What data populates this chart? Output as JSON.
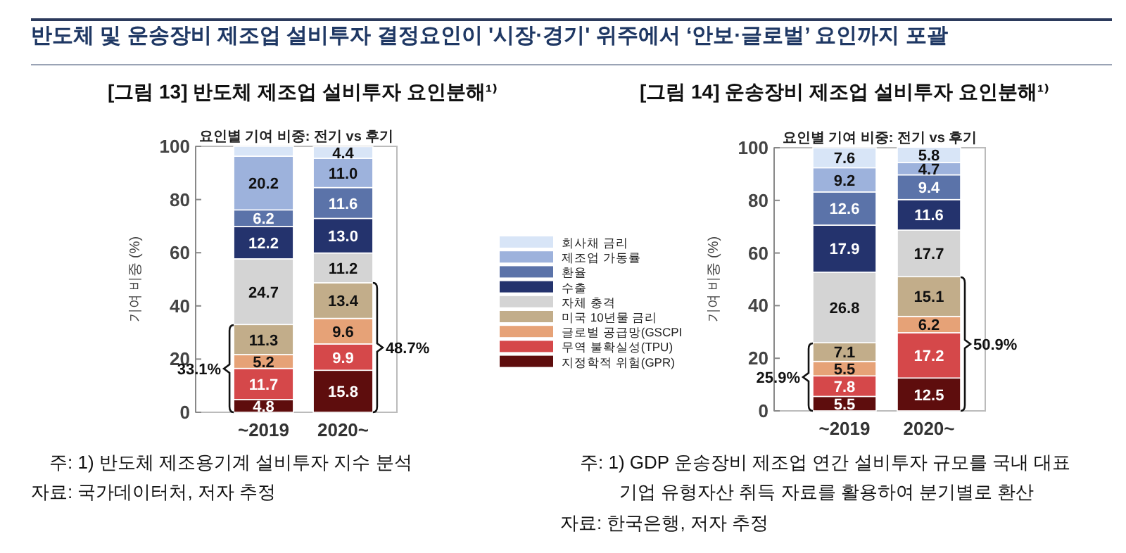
{
  "chart_data": [
    {
      "type": "bar",
      "stacked": true,
      "title": "[그림 13] 반도체 제조업 설비투자 요인분해¹⁾",
      "subtitle": "요인별 기여 비중: 전기 vs 후기",
      "ylabel": "기여 비중 (%)",
      "categories": [
        "~2019",
        "2020~"
      ],
      "ylim": [
        0,
        100
      ],
      "yticks": [
        0,
        20,
        40,
        60,
        80,
        100
      ],
      "legend": "right",
      "series": [
        {
          "name": "지정학적 위험(GPR)",
          "color": "#5e0d0d",
          "values": [
            4.8,
            15.8
          ],
          "value_labels": [
            "4.8",
            "15.8"
          ]
        },
        {
          "name": "무역 불확실성(TPU)",
          "color": "#d5484a",
          "values": [
            11.7,
            9.9
          ],
          "value_labels": [
            "11.7",
            "9.9"
          ]
        },
        {
          "name": "글로벌 공급망(GSCPI",
          "color": "#e6a277",
          "values": [
            5.2,
            9.6
          ],
          "value_labels": [
            "5.2",
            "9.6"
          ]
        },
        {
          "name": "미국 10년물 금리",
          "color": "#c2ad8a",
          "values": [
            11.3,
            13.4
          ],
          "value_labels": [
            "11.3",
            "13.4"
          ]
        },
        {
          "name": "자체 충격",
          "color": "#d4d4d4",
          "values": [
            24.7,
            11.2
          ],
          "value_labels": [
            "24.7",
            "11.2"
          ]
        },
        {
          "name": "수출",
          "color": "#24336d",
          "values": [
            12.2,
            13.0
          ],
          "value_labels": [
            "12.2",
            "13.0"
          ]
        },
        {
          "name": "환율",
          "color": "#5b73a9",
          "values": [
            6.2,
            11.6
          ],
          "value_labels": [
            "6.2",
            "11.6"
          ]
        },
        {
          "name": "제조업 가동률",
          "color": "#9db2dc",
          "values": [
            20.2,
            11.0
          ],
          "value_labels": [
            "20.2",
            "11.0"
          ]
        },
        {
          "name": "회사채 금리",
          "color": "#d8e5f7",
          "values": [
            3.7,
            4.4
          ],
          "value_labels": [
            null,
            "4.4"
          ]
        }
      ],
      "annotations": [
        "반도체 및 운송장비 제조업 설비투자 결정요인이 '시장·경기' 위주에서 ‘안보·글로벌’ 요인까지 포괄",
        "33.1%",
        "48.7%",
        "주: 1) 반도체 제조용기계 설비투자 지수 분석",
        "자료: 국가데이터처, 저자 추정"
      ]
    },
    {
      "type": "bar",
      "stacked": true,
      "title": "[그림 14] 운송장비 제조업 설비투자 요인분해¹⁾",
      "subtitle": "요인별 기여 비중: 전기 vs 후기",
      "ylabel": "기여 비중 (%)",
      "categories": [
        "~2019",
        "2020~"
      ],
      "ylim": [
        0,
        100
      ],
      "yticks": [
        0,
        20,
        40,
        60,
        80,
        100
      ],
      "series": [
        {
          "color": "#5e0d0d",
          "values": [
            5.5,
            12.5
          ],
          "value_labels": [
            "5.5",
            "12.5"
          ]
        },
        {
          "color": "#d5484a",
          "values": [
            7.8,
            17.2
          ],
          "value_labels": [
            "7.8",
            "17.2"
          ]
        },
        {
          "color": "#e6a277",
          "values": [
            5.5,
            6.2
          ],
          "value_labels": [
            "5.5",
            "6.2"
          ]
        },
        {
          "color": "#c2ad8a",
          "values": [
            7.1,
            15.1
          ],
          "value_labels": [
            "7.1",
            "15.1"
          ]
        },
        {
          "color": "#d4d4d4",
          "values": [
            26.8,
            17.7
          ],
          "value_labels": [
            "26.8",
            "17.7"
          ]
        },
        {
          "color": "#24336d",
          "values": [
            17.9,
            11.6
          ],
          "value_labels": [
            "17.9",
            "11.6"
          ]
        },
        {
          "color": "#5b73a9",
          "values": [
            12.6,
            9.4
          ],
          "value_labels": [
            "12.6",
            "9.4"
          ]
        },
        {
          "color": "#9db2dc",
          "values": [
            9.2,
            4.7
          ],
          "value_labels": [
            "9.2",
            "4.7"
          ]
        },
        {
          "color": "#d8e5f7",
          "values": [
            7.6,
            5.8
          ],
          "value_labels": [
            "7.6",
            "5.8"
          ]
        }
      ],
      "annotations": [
        "25.9%",
        "50.9%",
        "주: 1) GDP 운송장비 제조업 연간 설비투자 규모를 국내 대표 기업 유형자산 취득 자료를 활용하여 분기별로 환산",
        "자료: 한국은행, 저자 추정"
      ]
    }
  ]
}
